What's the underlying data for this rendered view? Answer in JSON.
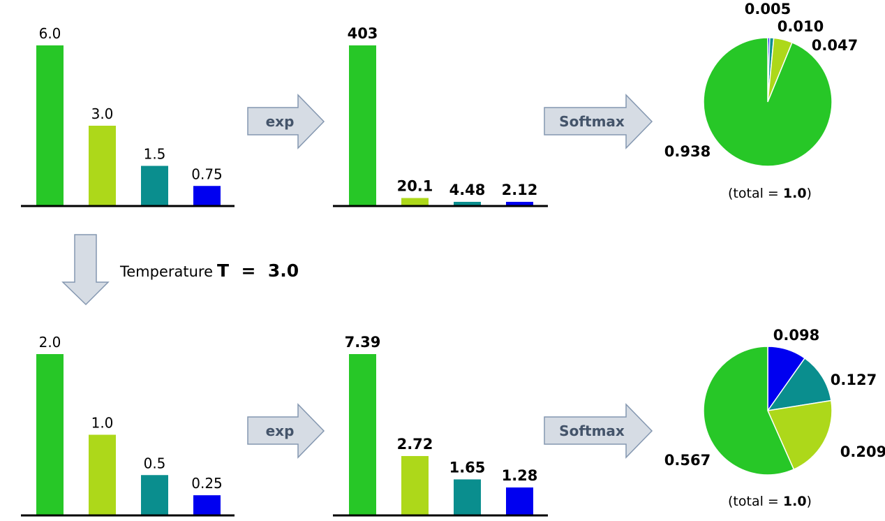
{
  "colors": {
    "c1": "#27c727",
    "c2": "#add81a",
    "c3": "#0a8e8e",
    "c4": "#0000f0",
    "arrow_fill": "#d6dce4",
    "arrow_stroke": "#8497b0",
    "arrow_text": "#44546a"
  },
  "labels": {
    "exp": "exp",
    "softmax": "Softmax",
    "temperature_word": "Temperature",
    "temperature_eq": "T  =  3.0",
    "total_prefix": "(total  =  ",
    "total_value": "1.0",
    "total_suffix": ")"
  },
  "chart_data": [
    {
      "type": "bar",
      "name": "logits",
      "values": [
        6.0,
        3.0,
        1.5,
        0.75
      ],
      "labels": [
        "6.0",
        "3.0",
        "1.5",
        "0.75"
      ]
    },
    {
      "type": "bar",
      "name": "exp",
      "values": [
        403,
        20.1,
        4.48,
        2.12
      ],
      "labels": [
        "403",
        "20.1",
        "4.48",
        "2.12"
      ]
    },
    {
      "type": "pie",
      "name": "softmax",
      "values": [
        0.938,
        0.047,
        0.01,
        0.005
      ],
      "labels": [
        "0.938",
        "0.047",
        "0.010",
        "0.005"
      ]
    },
    {
      "type": "bar",
      "name": "logits_T",
      "values": [
        2.0,
        1.0,
        0.5,
        0.25
      ],
      "labels": [
        "2.0",
        "1.0",
        "0.5",
        "0.25"
      ]
    },
    {
      "type": "bar",
      "name": "exp_T",
      "values": [
        7.39,
        2.72,
        1.65,
        1.28
      ],
      "labels": [
        "7.39",
        "2.72",
        "1.65",
        "1.28"
      ]
    },
    {
      "type": "pie",
      "name": "softmax_T",
      "values": [
        0.567,
        0.209,
        0.127,
        0.098
      ],
      "labels": [
        "0.567",
        "0.209",
        "0.127",
        "0.098"
      ]
    }
  ]
}
